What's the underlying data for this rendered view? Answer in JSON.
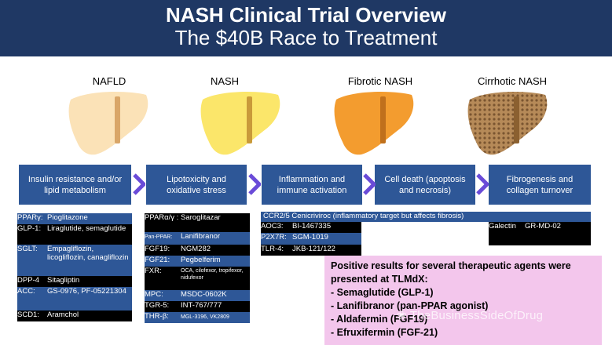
{
  "header": {
    "title": "NASH Clinical Trial Overview",
    "subtitle": "The $40B Race to Treatment"
  },
  "stages": [
    {
      "label": "NAFLD",
      "color": "#fbe2b7"
    },
    {
      "label": "NASH",
      "color": "#fbe66a"
    },
    {
      "label": "Fibrotic NASH",
      "color": "#f39c2f"
    },
    {
      "label": "Cirrhotic NASH",
      "color": "#b68a58"
    }
  ],
  "processes": [
    "Insulin resistance and/or lipid metabolism",
    "Lipotoxicity and oxidative stress",
    "Inflammation and immune activation",
    "Cell death (apoptosis and necrosis)",
    "Fibrogenesis and collagen turnover"
  ],
  "col1": [
    {
      "k": "PPARγ:",
      "v": "Pioglitazone"
    },
    {
      "k": "GLP-1:",
      "v": "Liraglutide, semaglutide"
    },
    {
      "k": "SGLT:",
      "v": "Empagliflozin, licogliflozin, canagliflozin"
    },
    {
      "k": "DPP-4",
      "v": "Sitagliptin"
    },
    {
      "k": "ACC:",
      "v": "GS-0976, PF-05221304"
    },
    {
      "k": "SCD1:",
      "v": "Aramchol"
    }
  ],
  "col2": [
    {
      "k": "PPARα/γ :",
      "v": "Saroglitazar"
    },
    {
      "k": "Pan-PPAR:",
      "v": "Lanifibranor"
    },
    {
      "k": "FGF19:",
      "v": "NGM282"
    },
    {
      "k": "FGF21:",
      "v": "Pegbelferim"
    },
    {
      "k": "FXR:",
      "v": "OCA, cilofexor, tropifexor, nidufexor"
    },
    {
      "k": "MPC:",
      "v": "MSDC-0602K"
    },
    {
      "k": "TGR-5:",
      "v": "INT-767/777"
    },
    {
      "k": "THR-β:",
      "v": "MGL-3196, VK2809"
    }
  ],
  "col3": {
    "banner": "CCR2/5 Cenicriviroc (inflammatory target but affects fibrosis)",
    "rows": [
      {
        "k": "AOC3:",
        "v": "BI-1467335"
      },
      {
        "k": "P2X7R:",
        "v": "SGM-1019"
      },
      {
        "k": "TLR-4:",
        "v": "JKB-121/122"
      }
    ]
  },
  "col5": {
    "k": "Galectin",
    "v": "GR-MD-02"
  },
  "results": {
    "heading": "Positive results for several therapeutic agents were presented at TLMdX:",
    "items": [
      "- Semaglutide (GLP-1)",
      "- Lanifibranor (pan-PPAR agonist)",
      "- Aldafermin (FGF19)",
      "- Efruxifermin (FGF-21)"
    ]
  },
  "watermark": "TheBusinessSideOfDrug",
  "colors": {
    "header": "#1f3864",
    "process": "#2e5797",
    "chevron": "#6a4bd8",
    "results_bg": "#f3c6ec"
  }
}
